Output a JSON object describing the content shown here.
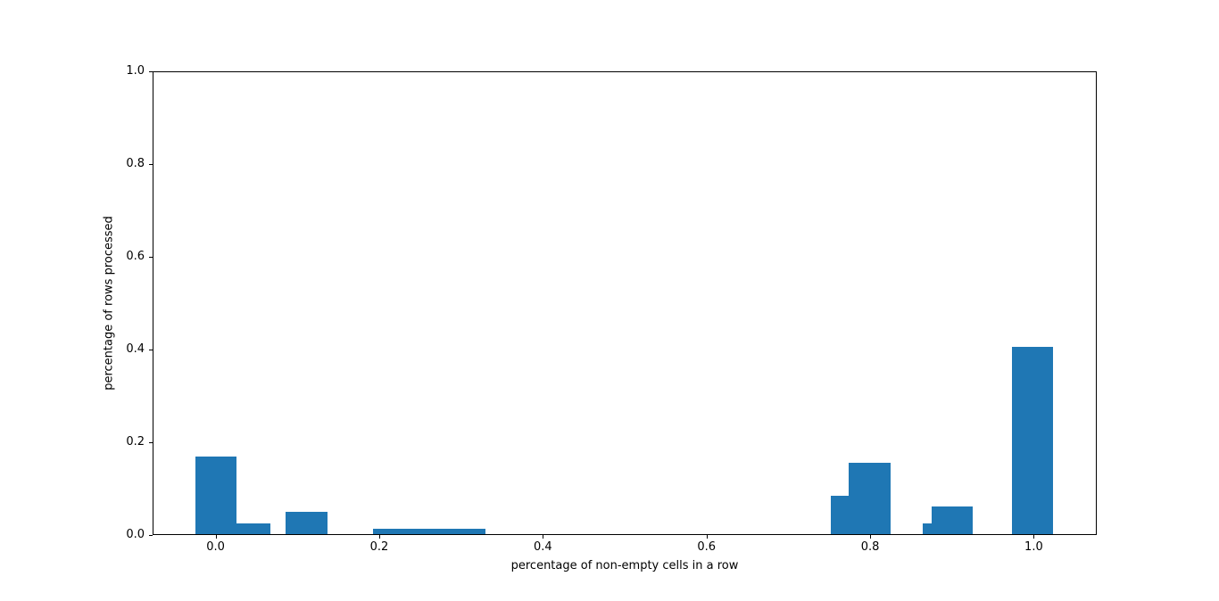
{
  "figure": {
    "background_color": "#ffffff",
    "title": ""
  },
  "chart_data": {
    "type": "bar",
    "style": "matplotlib-histogram",
    "title": "",
    "xlabel": "percentage of non-empty cells in a row",
    "ylabel": "percentage of rows processed",
    "xlim": [
      -0.077,
      1.077
    ],
    "ylim": [
      0,
      1
    ],
    "grid": false,
    "legend": false,
    "bar_color": "#1f77b4",
    "axis_color": "#000000",
    "text_color": "#000000",
    "xticks": {
      "values": [
        0.0,
        0.2,
        0.4,
        0.6,
        0.8,
        1.0
      ],
      "labels": [
        "0.0",
        "0.2",
        "0.4",
        "0.6",
        "0.8",
        "1.0"
      ]
    },
    "yticks": {
      "values": [
        0.0,
        0.2,
        0.4,
        0.6,
        0.8,
        1.0
      ],
      "labels": [
        "0.0",
        "0.2",
        "0.4",
        "0.6",
        "0.8",
        "1.0"
      ]
    },
    "bars": [
      {
        "x_left": -0.025,
        "x_right": 0.025,
        "height": 0.167
      },
      {
        "x_left": 0.025,
        "x_right": 0.067,
        "height": 0.024
      },
      {
        "x_left": 0.086,
        "x_right": 0.137,
        "height": 0.048
      },
      {
        "x_left": 0.192,
        "x_right": 0.33,
        "height": 0.012
      },
      {
        "x_left": 0.752,
        "x_right": 0.774,
        "height": 0.083
      },
      {
        "x_left": 0.774,
        "x_right": 0.825,
        "height": 0.154
      },
      {
        "x_left": 0.864,
        "x_right": 0.875,
        "height": 0.023
      },
      {
        "x_left": 0.875,
        "x_right": 0.925,
        "height": 0.06
      },
      {
        "x_left": 0.973,
        "x_right": 1.024,
        "height": 0.403
      }
    ]
  }
}
